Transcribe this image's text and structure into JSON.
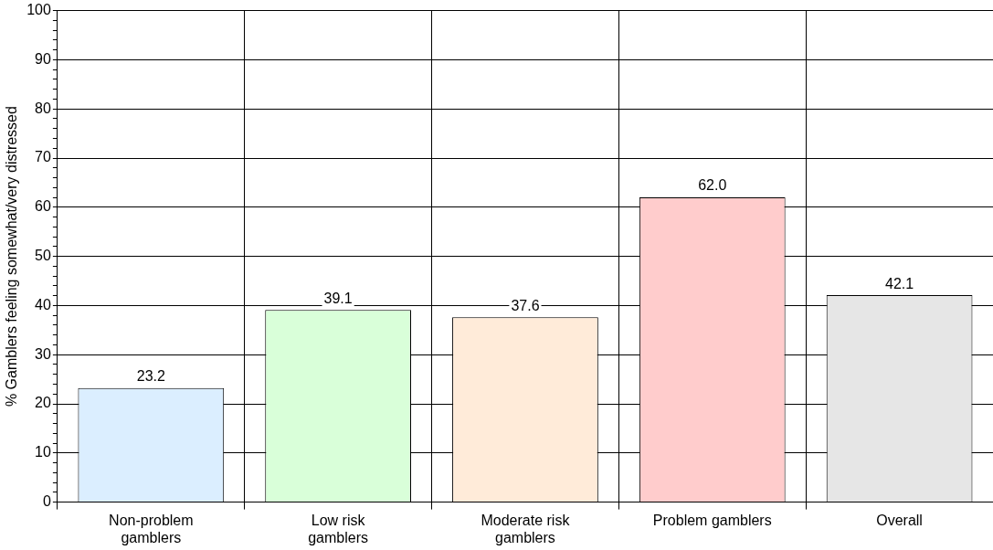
{
  "chart_data": {
    "type": "bar",
    "ylabel": "% Gamblers feeling somewhat/very distressed",
    "categories": [
      "Non-problem gamblers",
      "Low risk gamblers",
      "Moderate risk gamblers",
      "Problem gamblers",
      "Overall"
    ],
    "values": [
      23.2,
      39.1,
      37.6,
      62.0,
      42.1
    ],
    "value_labels": [
      "23.2",
      "39.1",
      "37.6",
      "62.0",
      "42.1"
    ],
    "colors": [
      "#dbeeff",
      "#d9ffd9",
      "#ffebd9",
      "#ffcccc",
      "#e6e6e6"
    ],
    "ylim": [
      0,
      100
    ],
    "yticks": [
      0,
      {
        "value": 2,
        "label": null
      },
      {
        "value": 4,
        "label": null
      },
      {
        "value": 6,
        "label": null
      },
      {
        "value": 8,
        "label": null
      },
      10,
      {
        "value": 12,
        "label": null
      },
      {
        "value": 14,
        "label": null
      },
      {
        "value": 16,
        "label": null
      },
      {
        "value": 18,
        "label": null
      },
      20,
      {
        "value": 22,
        "label": null
      },
      {
        "value": 24,
        "label": null
      },
      {
        "value": 26,
        "label": null
      },
      {
        "value": 28,
        "label": null
      },
      30,
      {
        "value": 32,
        "label": null
      },
      {
        "value": 34,
        "label": null
      },
      {
        "value": 36,
        "label": null
      },
      {
        "value": 38,
        "label": null
      },
      40,
      {
        "value": 42,
        "label": null
      },
      {
        "value": 44,
        "label": null
      },
      {
        "value": 46,
        "label": null
      },
      {
        "value": 48,
        "label": null
      },
      50,
      {
        "value": 52,
        "label": null
      },
      {
        "value": 54,
        "label": null
      },
      {
        "value": 56,
        "label": null
      },
      {
        "value": 58,
        "label": null
      },
      60,
      {
        "value": 62,
        "label": null
      },
      {
        "value": 64,
        "label": null
      },
      {
        "value": 66,
        "label": null
      },
      {
        "value": 68,
        "label": null
      },
      70,
      {
        "value": 72,
        "label": null
      },
      {
        "value": 74,
        "label": null
      },
      {
        "value": 76,
        "label": null
      },
      {
        "value": 78,
        "label": null
      },
      80,
      {
        "value": 82,
        "label": null
      },
      {
        "value": 84,
        "label": null
      },
      {
        "value": 86,
        "label": null
      },
      {
        "value": 88,
        "label": null
      },
      90,
      {
        "value": 92,
        "label": null
      },
      {
        "value": 94,
        "label": null
      },
      {
        "value": 96,
        "label": null
      },
      {
        "value": 98,
        "label": null
      },
      100
    ],
    "grid": true
  }
}
